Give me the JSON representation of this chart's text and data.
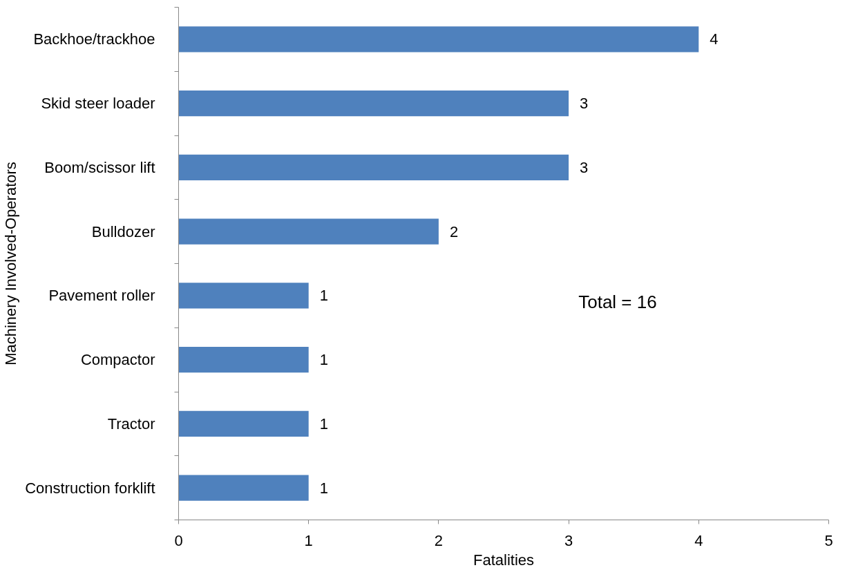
{
  "chart_data": {
    "type": "bar",
    "orientation": "horizontal",
    "xlabel": "Fatalities",
    "ylabel": "Machinery Involved-Operators",
    "categories": [
      "Backhoe/trackhoe",
      "Skid steer loader",
      "Boom/scissor lift",
      "Bulldozer",
      "Pavement roller",
      "Compactor",
      "Tractor",
      "Construction forklift"
    ],
    "values": [
      4,
      3,
      3,
      2,
      1,
      1,
      1,
      1
    ],
    "color": "#4f81bd",
    "xlim": [
      0,
      5
    ],
    "xticks": [
      0,
      1,
      2,
      3,
      4,
      5
    ],
    "grid": false,
    "data_labels": true,
    "annotations": [
      "Total = 16"
    ]
  }
}
